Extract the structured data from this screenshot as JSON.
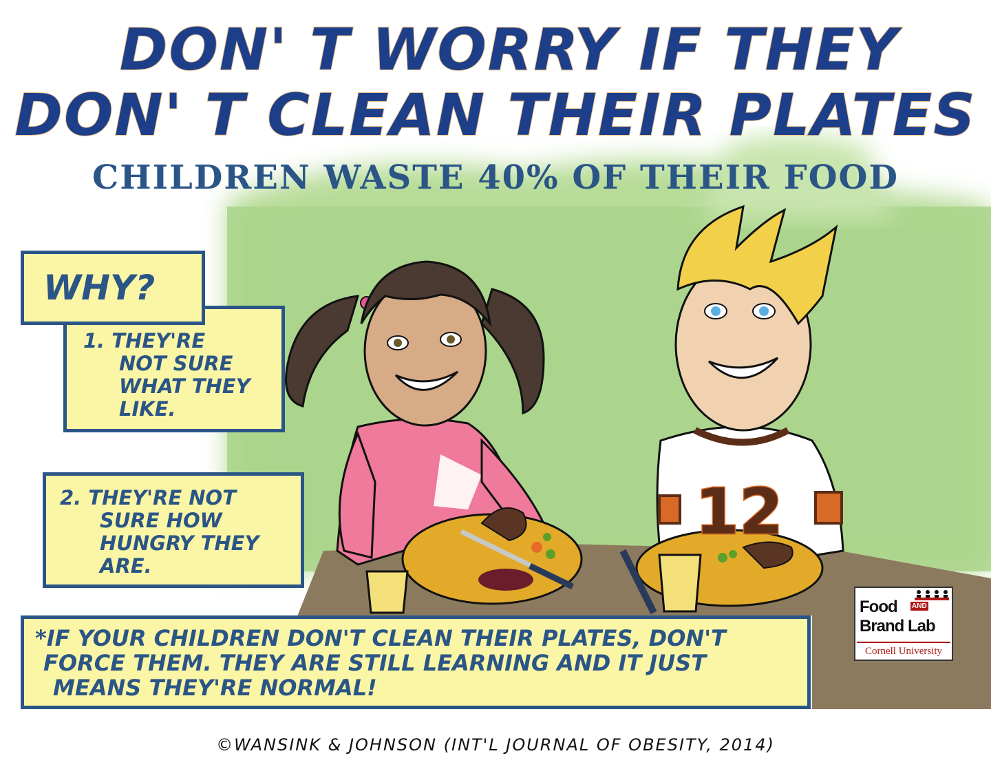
{
  "title_line1": "DON' T WORRY IF THEY",
  "title_line2": "DON' T CLEAN THEIR PLATES",
  "subtitle": "CHILDREN WASTE 40% OF THEIR FOOD",
  "why_label": "WHY?",
  "reason1": [
    "1. THEY'RE",
    "NOT SURE",
    "WHAT THEY",
    "LIKE."
  ],
  "reason2": [
    "2. THEY'RE NOT",
    "SURE HOW",
    "HUNGRY THEY",
    "ARE."
  ],
  "advice": [
    "*IF YOUR CHILDREN DON'T CLEAN THEIR PLATES, DON'T",
    "FORCE THEM. THEY ARE STILL LEARNING AND IT JUST",
    "MEANS THEY'RE NORMAL!"
  ],
  "credit": "©WANSINK & JOHNSON (INT'L JOURNAL OF OBESITY, 2014)",
  "logo": {
    "line1": "Food",
    "and": "AND",
    "line2": "Brand Lab",
    "line3": "Cornell University"
  },
  "jersey_number": "12",
  "colors": {
    "title_blue": "#1d3f8a",
    "box_fill": "#fbf6a5",
    "box_border": "#2a5586",
    "background_green": "#a9d48a",
    "shirt_pink": "#ef7a9b",
    "jersey_brown": "#5c2d17",
    "jersey_orange": "#d86a25"
  }
}
